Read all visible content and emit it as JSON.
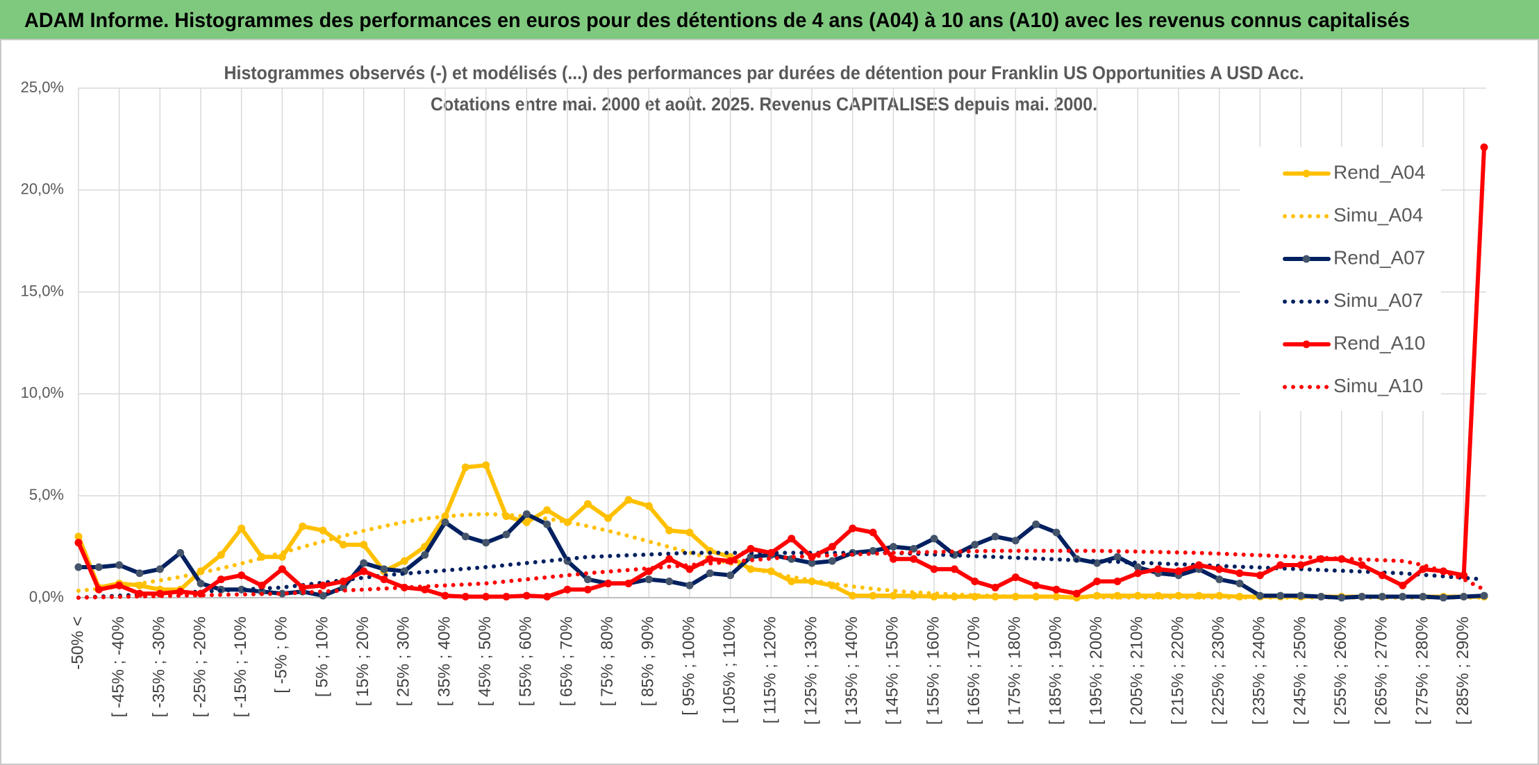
{
  "chart_data": {
    "type": "line",
    "title": "ADAM Informe. Histogrammes des performances en euros pour des détentions de 4 ans (A04) à 10 ans (A10) avec les revenus connus capitalisés",
    "subtitle": [
      "Histogrammes observés (-) et modélisés (...) des performances par durées de détention pour Franklin US Opportunities A USD Acc.",
      "Cotations entre mai. 2000 et août. 2025. Revenus CAPITALISES depuis mai. 2000."
    ],
    "categories": [
      "-50% <",
      null,
      "[ -45% ; -40%",
      null,
      "[ -35% ; -30%",
      null,
      "[ -25% ; -20%",
      null,
      "[ -15% ; -10%",
      null,
      "[ -5% ; 0%",
      null,
      "[ 5% ; 10%",
      null,
      "[ 15% ; 20%",
      null,
      "[ 25% ; 30%",
      null,
      "[ 35% ; 40%",
      null,
      "[ 45% ; 50%",
      null,
      "[ 55% ; 60%",
      null,
      "[ 65% ; 70%",
      null,
      "[ 75% ; 80%",
      null,
      "[ 85% ; 90%",
      null,
      "[ 95% ; 100%",
      null,
      "[ 105% ; 110%",
      null,
      "[ 115% ; 120%",
      null,
      "[ 125% ; 130%",
      null,
      "[ 135% ; 140%",
      null,
      "[ 145% ; 150%",
      null,
      "[ 155% ; 160%",
      null,
      "[ 165% ; 170%",
      null,
      "[ 175% ; 180%",
      null,
      "[ 185% ; 190%",
      null,
      "[ 195% ; 200%",
      null,
      "[ 205% ; 210%",
      null,
      "[ 215% ; 220%",
      null,
      "[ 225% ; 230%",
      null,
      "[ 235% ; 240%",
      null,
      "[ 245% ; 250%",
      null,
      "[ 255% ; 260%",
      null,
      "[ 265% ; 270%",
      null,
      "[ 275% ; 280%",
      null,
      "[ 285% ; 290%",
      null
    ],
    "ylim": [
      0,
      25
    ],
    "yticks": [
      {
        "value": 0,
        "label": "0,0%"
      },
      {
        "value": 5,
        "label": "5,0%"
      },
      {
        "value": 10,
        "label": "10,0%"
      },
      {
        "value": 15,
        "label": "15,0%"
      },
      {
        "value": 20,
        "label": "20,0%"
      },
      {
        "value": 25,
        "label": "25,0%"
      }
    ],
    "grid": true,
    "legend": "right",
    "series": [
      {
        "name": "Rend_A04",
        "color": "#ffc000",
        "style": "solid",
        "markers": true,
        "values": [
          3.0,
          0.5,
          0.7,
          0.6,
          0.4,
          0.4,
          1.3,
          2.1,
          3.4,
          2.0,
          2.0,
          3.5,
          3.3,
          2.6,
          2.6,
          1.3,
          1.8,
          2.5,
          4.0,
          6.4,
          6.5,
          4.0,
          3.7,
          4.3,
          3.7,
          4.6,
          3.9,
          4.8,
          4.5,
          3.3,
          3.2,
          2.3,
          2.0,
          1.4,
          1.3,
          0.8,
          0.8,
          0.6,
          0.1,
          0.1,
          0.1,
          0.1,
          0.05,
          0.05,
          0.05,
          0.05,
          0.05,
          0.05,
          0.05,
          0.0,
          0.1,
          0.1,
          0.1,
          0.1,
          0.1,
          0.1,
          0.1,
          0.05,
          0.05,
          0.05,
          0.05,
          0.05,
          0.05,
          0.05,
          0.05,
          0.05,
          0.05,
          0.05,
          0.05,
          0.05
        ]
      },
      {
        "name": "Simu_A04",
        "color": "#ffc000",
        "style": "dotted",
        "markers": false,
        "values": [
          0.34,
          0.44,
          0.55,
          0.69,
          0.85,
          1.02,
          1.22,
          1.44,
          1.68,
          1.94,
          2.21,
          2.49,
          2.76,
          3.03,
          3.28,
          3.51,
          3.71,
          3.88,
          3.98,
          4.07,
          4.1,
          4.07,
          3.98,
          3.88,
          3.71,
          3.51,
          3.28,
          3.03,
          2.76,
          2.49,
          2.21,
          1.94,
          1.68,
          1.44,
          1.22,
          1.02,
          0.85,
          0.69,
          0.55,
          0.44,
          0.34,
          0.27,
          0.21,
          0.16,
          0.12,
          0.09,
          0.06,
          0.05,
          0.04,
          0.03,
          0.02,
          0.01,
          0.01,
          0.01,
          0.01,
          0.01,
          0.01,
          0.01,
          0.01,
          0.01,
          0.01,
          0.01,
          0.01,
          0.01,
          0.01,
          0.01,
          0.01,
          0.01,
          0.01,
          0.01
        ]
      },
      {
        "name": "Rend_A07",
        "color": "#002060",
        "style": "solid",
        "markers": true,
        "values": [
          1.5,
          1.5,
          1.6,
          1.2,
          1.4,
          2.2,
          0.7,
          0.4,
          0.4,
          0.3,
          0.2,
          0.3,
          0.1,
          0.5,
          1.7,
          1.4,
          1.3,
          2.1,
          3.7,
          3.0,
          2.7,
          3.1,
          4.1,
          3.6,
          1.8,
          0.9,
          0.7,
          0.7,
          0.9,
          0.8,
          0.6,
          1.2,
          1.1,
          2.0,
          2.1,
          1.9,
          1.7,
          1.8,
          2.2,
          2.3,
          2.5,
          2.4,
          2.9,
          2.1,
          2.6,
          3.0,
          2.8,
          3.6,
          3.2,
          1.9,
          1.7,
          2.0,
          1.5,
          1.2,
          1.1,
          1.4,
          0.9,
          0.7,
          0.1,
          0.1,
          0.1,
          0.05,
          0.0,
          0.05,
          0.05,
          0.05,
          0.05,
          0.0,
          0.05,
          0.1
        ]
      },
      {
        "name": "Simu_A07",
        "color": "#002060",
        "style": "dotted",
        "markers": false,
        "values": [
          0,
          0.05,
          0.1,
          0.15,
          0.2,
          0.25,
          0.3,
          0.35,
          0.4,
          0.45,
          0.5,
          0.62,
          0.74,
          0.86,
          0.98,
          1.1,
          1.18,
          1.26,
          1.34,
          1.42,
          1.5,
          1.6,
          1.7,
          1.8,
          1.9,
          2.0,
          2.04,
          2.08,
          2.12,
          2.16,
          2.2,
          2.2,
          2.2,
          2.2,
          2.2,
          2.2,
          2.2,
          2.2,
          2.2,
          2.2,
          2.2,
          2.16,
          2.12,
          2.08,
          2.04,
          2.0,
          1.96,
          1.92,
          1.88,
          1.84,
          1.8,
          1.76,
          1.72,
          1.68,
          1.64,
          1.6,
          1.56,
          1.52,
          1.48,
          1.44,
          1.4,
          1.36,
          1.32,
          1.28,
          1.24,
          1.2,
          1.12,
          1.05,
          0.97,
          0.9
        ]
      },
      {
        "name": "Rend_A10",
        "color": "#ff0000",
        "style": "solid",
        "markers": true,
        "values": [
          2.7,
          0.4,
          0.6,
          0.2,
          0.2,
          0.3,
          0.2,
          0.9,
          1.1,
          0.6,
          1.4,
          0.5,
          0.6,
          0.8,
          1.3,
          0.9,
          0.5,
          0.4,
          0.1,
          0.05,
          0.05,
          0.05,
          0.1,
          0.05,
          0.4,
          0.4,
          0.7,
          0.7,
          1.3,
          1.9,
          1.4,
          1.9,
          1.8,
          2.4,
          2.2,
          2.9,
          2.0,
          2.5,
          3.4,
          3.2,
          1.9,
          1.9,
          1.4,
          1.4,
          0.8,
          0.5,
          1.0,
          0.6,
          0.4,
          0.2,
          0.8,
          0.8,
          1.2,
          1.4,
          1.3,
          1.6,
          1.4,
          1.2,
          1.1,
          1.6,
          1.6,
          1.9,
          1.9,
          1.6,
          1.1,
          0.6,
          1.4,
          1.3,
          1.1,
          22.1
        ]
      },
      {
        "name": "Simu_A10",
        "color": "#ff0000",
        "style": "dotted",
        "markers": false,
        "values": [
          0,
          0.02,
          0.04,
          0.06,
          0.08,
          0.1,
          0.12,
          0.14,
          0.16,
          0.18,
          0.2,
          0.25,
          0.3,
          0.35,
          0.4,
          0.45,
          0.5,
          0.55,
          0.6,
          0.65,
          0.7,
          0.8,
          0.9,
          1.0,
          1.1,
          1.2,
          1.28,
          1.36,
          1.44,
          1.52,
          1.6,
          1.68,
          1.76,
          1.84,
          1.92,
          2.0,
          2.04,
          2.08,
          2.12,
          2.16,
          2.2,
          2.22,
          2.24,
          2.26,
          2.28,
          2.3,
          2.3,
          2.3,
          2.3,
          2.3,
          2.3,
          2.28,
          2.26,
          2.24,
          2.22,
          2.2,
          2.16,
          2.12,
          2.08,
          2.04,
          2.0,
          1.96,
          1.92,
          1.88,
          1.84,
          1.8,
          1.6,
          1.3,
          0.9,
          0.4
        ]
      }
    ]
  }
}
